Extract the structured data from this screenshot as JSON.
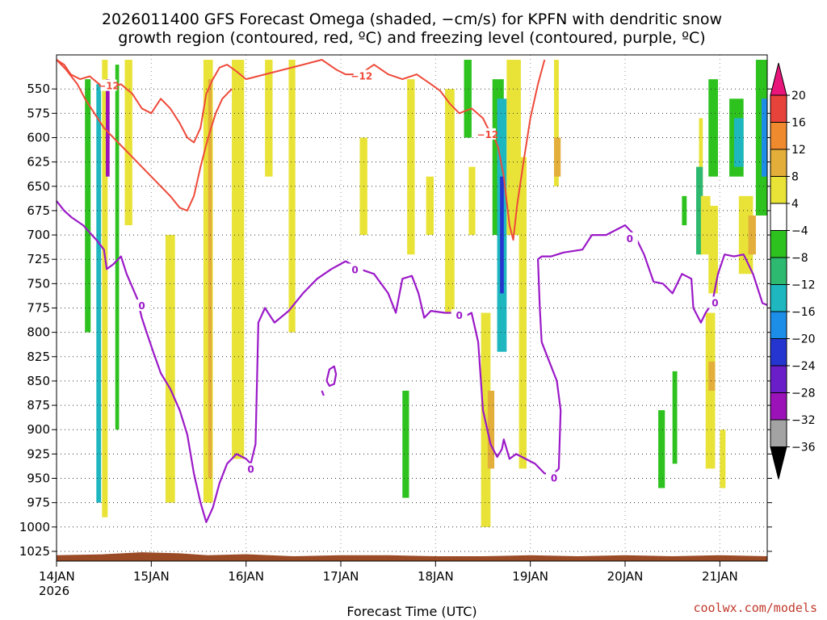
{
  "chart_data": {
    "type": "heatmap",
    "title_line1": "2026011400 GFS Forecast Omega (shaded, −cm/s) for KPFN with dendritic snow",
    "title_line2": "growth region (contoured, red, ºC) and freezing level (contoured, purple, ºC)",
    "xlabel": "Forecast Time (UTC)",
    "x_ticks": [
      {
        "day": 0,
        "label": "14JAN",
        "sublabel": "2026"
      },
      {
        "day": 1,
        "label": "15JAN"
      },
      {
        "day": 2,
        "label": "16JAN"
      },
      {
        "day": 3,
        "label": "17JAN"
      },
      {
        "day": 4,
        "label": "18JAN"
      },
      {
        "day": 5,
        "label": "19JAN"
      },
      {
        "day": 6,
        "label": "20JAN"
      },
      {
        "day": 7,
        "label": "21JAN"
      }
    ],
    "xlim_days": [
      0,
      7.5
    ],
    "y_ticks": [
      550,
      575,
      600,
      625,
      650,
      675,
      700,
      725,
      750,
      775,
      800,
      825,
      850,
      875,
      900,
      925,
      950,
      975,
      1000,
      1025
    ],
    "ylim_hpa": [
      515,
      1035
    ],
    "colorbar": {
      "labels": [
        "20",
        "16",
        "12",
        "8",
        "4",
        "−4",
        "−8",
        "−12",
        "−16",
        "−20",
        "−24",
        "−28",
        "−32",
        "−36"
      ],
      "colors": [
        "#e8157a",
        "#e8433a",
        "#ef8a2f",
        "#e3ae3a",
        "#e9e338",
        "#ffffff",
        "#2ec21f",
        "#2eb970",
        "#1eb7c0",
        "#1c8ee8",
        "#2436cf",
        "#6a1ec8",
        "#9b12b8",
        "#a3a3a3",
        "#000000"
      ]
    },
    "omega_regions": [
      {
        "d0": 0.42,
        "d1": 0.47,
        "p0": 545,
        "p1": 975,
        "v": -12
      },
      {
        "d0": 0.48,
        "d1": 0.54,
        "p0": 520,
        "p1": 990,
        "v": 6
      },
      {
        "d0": 0.52,
        "d1": 0.56,
        "p0": 540,
        "p1": 640,
        "v": -28
      },
      {
        "d0": 0.3,
        "d1": 0.36,
        "p0": 540,
        "p1": 800,
        "v": -6
      },
      {
        "d0": 0.62,
        "d1": 0.66,
        "p0": 525,
        "p1": 900,
        "v": -6
      },
      {
        "d0": 0.72,
        "d1": 0.8,
        "p0": 520,
        "p1": 690,
        "v": 6
      },
      {
        "d0": 1.15,
        "d1": 1.25,
        "p0": 700,
        "p1": 975,
        "v": 6
      },
      {
        "d0": 1.55,
        "d1": 1.65,
        "p0": 520,
        "p1": 975,
        "v": 6
      },
      {
        "d0": 1.6,
        "d1": 1.64,
        "p0": 540,
        "p1": 950,
        "v": 10
      },
      {
        "d0": 1.85,
        "d1": 1.98,
        "p0": 520,
        "p1": 930,
        "v": 6
      },
      {
        "d0": 2.2,
        "d1": 2.28,
        "p0": 520,
        "p1": 640,
        "v": 6
      },
      {
        "d0": 2.45,
        "d1": 2.52,
        "p0": 520,
        "p1": 800,
        "v": 5
      },
      {
        "d0": 3.2,
        "d1": 3.28,
        "p0": 600,
        "p1": 700,
        "v": 5
      },
      {
        "d0": 3.7,
        "d1": 3.78,
        "p0": 540,
        "p1": 720,
        "v": 5
      },
      {
        "d0": 3.65,
        "d1": 3.72,
        "p0": 860,
        "p1": 970,
        "v": -6
      },
      {
        "d0": 3.9,
        "d1": 3.98,
        "p0": 640,
        "p1": 700,
        "v": 5
      },
      {
        "d0": 4.1,
        "d1": 4.2,
        "p0": 550,
        "p1": 780,
        "v": 5
      },
      {
        "d0": 4.3,
        "d1": 4.38,
        "p0": 520,
        "p1": 600,
        "v": -6
      },
      {
        "d0": 4.35,
        "d1": 4.42,
        "p0": 630,
        "p1": 700,
        "v": 5
      },
      {
        "d0": 4.48,
        "d1": 4.58,
        "p0": 780,
        "p1": 1000,
        "v": 5
      },
      {
        "d0": 4.6,
        "d1": 4.72,
        "p0": 540,
        "p1": 700,
        "v": -6
      },
      {
        "d0": 4.65,
        "d1": 4.75,
        "p0": 560,
        "p1": 820,
        "v": -14
      },
      {
        "d0": 4.68,
        "d1": 4.72,
        "p0": 640,
        "p1": 760,
        "v": -22
      },
      {
        "d0": 4.55,
        "d1": 4.62,
        "p0": 860,
        "p1": 940,
        "v": 10
      },
      {
        "d0": 4.75,
        "d1": 4.9,
        "p0": 520,
        "p1": 700,
        "v": 5
      },
      {
        "d0": 4.88,
        "d1": 4.96,
        "p0": 620,
        "p1": 940,
        "v": 5
      },
      {
        "d0": 5.25,
        "d1": 5.3,
        "p0": 520,
        "p1": 650,
        "v": 5
      },
      {
        "d0": 5.25,
        "d1": 5.32,
        "p0": 600,
        "p1": 640,
        "v": 10
      },
      {
        "d0": 6.35,
        "d1": 6.42,
        "p0": 880,
        "p1": 960,
        "v": -6
      },
      {
        "d0": 6.5,
        "d1": 6.55,
        "p0": 840,
        "p1": 935,
        "v": -6
      },
      {
        "d0": 6.6,
        "d1": 6.65,
        "p0": 660,
        "p1": 690,
        "v": -6
      },
      {
        "d0": 6.78,
        "d1": 6.82,
        "p0": 580,
        "p1": 700,
        "v": 5
      },
      {
        "d0": 6.75,
        "d1": 6.82,
        "p0": 630,
        "p1": 720,
        "v": -10
      },
      {
        "d0": 6.8,
        "d1": 6.9,
        "p0": 660,
        "p1": 720,
        "v": 5
      },
      {
        "d0": 6.88,
        "d1": 6.98,
        "p0": 540,
        "p1": 640,
        "v": -6
      },
      {
        "d0": 6.88,
        "d1": 6.98,
        "p0": 670,
        "p1": 760,
        "v": 5
      },
      {
        "d0": 6.85,
        "d1": 6.95,
        "p0": 780,
        "p1": 940,
        "v": 5
      },
      {
        "d0": 6.88,
        "d1": 6.95,
        "p0": 830,
        "p1": 860,
        "v": 10
      },
      {
        "d0": 7.0,
        "d1": 7.06,
        "p0": 900,
        "p1": 960,
        "v": 5
      },
      {
        "d0": 7.1,
        "d1": 7.25,
        "p0": 560,
        "p1": 640,
        "v": -6
      },
      {
        "d0": 7.15,
        "d1": 7.25,
        "p0": 580,
        "p1": 630,
        "v": -12
      },
      {
        "d0": 7.2,
        "d1": 7.35,
        "p0": 660,
        "p1": 740,
        "v": 5
      },
      {
        "d0": 7.3,
        "d1": 7.38,
        "p0": 680,
        "p1": 720,
        "v": 10
      },
      {
        "d0": 7.38,
        "d1": 7.5,
        "p0": 520,
        "p1": 680,
        "v": -6
      },
      {
        "d0": 7.44,
        "d1": 7.5,
        "p0": 560,
        "p1": 640,
        "v": -16
      }
    ],
    "contour_dgz_minus12_labels": [
      {
        "day": 0.55,
        "p": 547,
        "text": "−12"
      },
      {
        "day": 3.22,
        "p": 537,
        "text": "−12"
      },
      {
        "day": 4.55,
        "p": 597,
        "text": "−12"
      }
    ],
    "contour_dgz_minus12": [
      [
        0.0,
        520
      ],
      [
        0.08,
        525
      ],
      [
        0.15,
        535
      ],
      [
        0.25,
        540
      ],
      [
        0.35,
        537
      ],
      [
        0.45,
        545
      ],
      [
        0.55,
        550
      ],
      [
        0.68,
        545
      ],
      [
        0.8,
        555
      ],
      [
        0.9,
        570
      ],
      [
        1.0,
        575
      ],
      [
        1.1,
        560
      ],
      [
        1.2,
        570
      ],
      [
        1.3,
        585
      ],
      [
        1.38,
        600
      ],
      [
        1.45,
        605
      ],
      [
        1.52,
        590
      ],
      [
        1.58,
        555
      ],
      [
        1.65,
        540
      ],
      [
        1.72,
        528
      ],
      [
        1.8,
        525
      ],
      [
        1.9,
        532
      ],
      [
        2.0,
        540
      ],
      [
        2.2,
        535
      ],
      [
        2.4,
        530
      ],
      [
        2.6,
        525
      ],
      [
        2.8,
        520
      ],
      [
        2.95,
        530
      ],
      [
        3.05,
        535
      ],
      [
        3.2,
        535
      ],
      [
        3.35,
        525
      ],
      [
        3.5,
        535
      ],
      [
        3.65,
        540
      ],
      [
        3.8,
        535
      ],
      [
        3.95,
        545
      ],
      [
        4.05,
        552
      ],
      [
        4.15,
        565
      ],
      [
        4.25,
        575
      ],
      [
        4.38,
        570
      ],
      [
        4.5,
        580
      ],
      [
        4.55,
        590
      ],
      [
        4.6,
        595
      ],
      [
        4.66,
        610
      ],
      [
        4.72,
        640
      ],
      [
        4.78,
        690
      ],
      [
        4.82,
        705
      ],
      [
        4.86,
        670
      ],
      [
        4.92,
        630
      ],
      [
        5.0,
        580
      ],
      [
        5.08,
        545
      ],
      [
        5.15,
        520
      ]
    ],
    "contour_dgz_minus16": [
      [
        0.0,
        520
      ],
      [
        0.1,
        530
      ],
      [
        0.22,
        545
      ],
      [
        0.3,
        560
      ],
      [
        0.4,
        575
      ],
      [
        0.5,
        590
      ],
      [
        0.6,
        600
      ],
      [
        0.7,
        610
      ],
      [
        0.8,
        620
      ],
      [
        0.9,
        630
      ],
      [
        1.0,
        640
      ],
      [
        1.1,
        650
      ],
      [
        1.2,
        660
      ],
      [
        1.3,
        672
      ],
      [
        1.38,
        675
      ],
      [
        1.45,
        660
      ],
      [
        1.52,
        630
      ],
      [
        1.6,
        600
      ],
      [
        1.68,
        575
      ],
      [
        1.75,
        560
      ],
      [
        1.85,
        550
      ]
    ],
    "freezing_level_labels": [
      {
        "day": 0.9,
        "p": 773,
        "text": "0"
      },
      {
        "day": 2.05,
        "p": 941,
        "text": "0"
      },
      {
        "day": 3.15,
        "p": 736,
        "text": "0"
      },
      {
        "day": 4.25,
        "p": 783,
        "text": "0"
      },
      {
        "day": 5.25,
        "p": 950,
        "text": "0"
      },
      {
        "day": 6.05,
        "p": 704,
        "text": "0"
      },
      {
        "day": 6.95,
        "p": 770,
        "text": "0"
      }
    ],
    "freezing_level": [
      [
        0.0,
        665
      ],
      [
        0.08,
        675
      ],
      [
        0.16,
        682
      ],
      [
        0.28,
        690
      ],
      [
        0.42,
        705
      ],
      [
        0.5,
        715
      ],
      [
        0.53,
        735
      ],
      [
        0.6,
        730
      ],
      [
        0.68,
        722
      ],
      [
        0.74,
        740
      ],
      [
        0.85,
        765
      ],
      [
        0.9,
        785
      ],
      [
        0.95,
        800
      ],
      [
        1.02,
        820
      ],
      [
        1.1,
        842
      ],
      [
        1.2,
        858
      ],
      [
        1.3,
        880
      ],
      [
        1.38,
        905
      ],
      [
        1.45,
        945
      ],
      [
        1.52,
        975
      ],
      [
        1.58,
        995
      ],
      [
        1.65,
        980
      ],
      [
        1.72,
        955
      ],
      [
        1.8,
        935
      ],
      [
        1.9,
        925
      ],
      [
        2.0,
        930
      ],
      [
        2.05,
        935
      ],
      [
        2.1,
        915
      ],
      [
        2.13,
        790
      ],
      [
        2.2,
        775
      ],
      [
        2.3,
        790
      ],
      [
        2.45,
        778
      ],
      [
        2.6,
        760
      ],
      [
        2.75,
        745
      ],
      [
        2.9,
        735
      ],
      [
        3.05,
        727
      ],
      [
        3.2,
        735
      ],
      [
        3.35,
        740
      ],
      [
        3.5,
        760
      ],
      [
        3.58,
        780
      ],
      [
        3.65,
        745
      ],
      [
        3.75,
        742
      ],
      [
        3.82,
        760
      ],
      [
        3.88,
        785
      ],
      [
        3.95,
        778
      ],
      [
        4.1,
        780
      ],
      [
        4.2,
        780
      ],
      [
        4.28,
        785
      ],
      [
        4.38,
        780
      ],
      [
        4.45,
        810
      ],
      [
        4.5,
        880
      ],
      [
        4.58,
        915
      ],
      [
        4.65,
        928
      ],
      [
        4.7,
        920
      ],
      [
        4.72,
        910
      ],
      [
        4.78,
        930
      ],
      [
        4.85,
        925
      ],
      [
        4.95,
        930
      ],
      [
        5.05,
        935
      ],
      [
        5.15,
        945
      ],
      [
        5.25,
        945
      ],
      [
        5.3,
        940
      ],
      [
        5.32,
        880
      ],
      [
        5.28,
        850
      ],
      [
        5.2,
        830
      ],
      [
        5.12,
        810
      ],
      [
        5.1,
        775
      ],
      [
        5.08,
        725
      ],
      [
        5.12,
        722
      ],
      [
        5.22,
        722
      ],
      [
        5.35,
        718
      ],
      [
        5.55,
        715
      ],
      [
        5.65,
        700
      ],
      [
        5.8,
        700
      ],
      [
        5.9,
        695
      ],
      [
        6.0,
        690
      ],
      [
        6.1,
        700
      ],
      [
        6.2,
        720
      ],
      [
        6.3,
        748
      ],
      [
        6.4,
        750
      ],
      [
        6.5,
        760
      ],
      [
        6.6,
        740
      ],
      [
        6.7,
        745
      ],
      [
        6.72,
        775
      ],
      [
        6.8,
        790
      ],
      [
        6.85,
        780
      ],
      [
        6.92,
        770
      ],
      [
        6.98,
        740
      ],
      [
        7.05,
        720
      ],
      [
        7.15,
        722
      ],
      [
        7.25,
        720
      ],
      [
        7.35,
        740
      ],
      [
        7.45,
        770
      ],
      [
        7.5,
        772
      ]
    ],
    "freezing_level_islands": [
      [
        [
          2.85,
          850
        ],
        [
          2.88,
          838
        ],
        [
          2.93,
          835
        ],
        [
          2.95,
          843
        ],
        [
          2.93,
          853
        ],
        [
          2.88,
          855
        ],
        [
          2.85,
          850
        ]
      ],
      [
        [
          2.8,
          860
        ],
        [
          2.82,
          865
        ]
      ]
    ],
    "terrain_sfc_hpa": [
      [
        0.0,
        1029
      ],
      [
        0.5,
        1028
      ],
      [
        0.9,
        1026
      ],
      [
        1.3,
        1027
      ],
      [
        1.6,
        1029
      ],
      [
        2.0,
        1028
      ],
      [
        2.5,
        1030
      ],
      [
        3.0,
        1029
      ],
      [
        3.5,
        1029
      ],
      [
        4.0,
        1030
      ],
      [
        4.5,
        1030
      ],
      [
        5.0,
        1029
      ],
      [
        5.5,
        1030
      ],
      [
        6.0,
        1029
      ],
      [
        6.5,
        1030
      ],
      [
        7.0,
        1029
      ],
      [
        7.5,
        1030
      ]
    ]
  },
  "credit": "coolwx.com/models"
}
